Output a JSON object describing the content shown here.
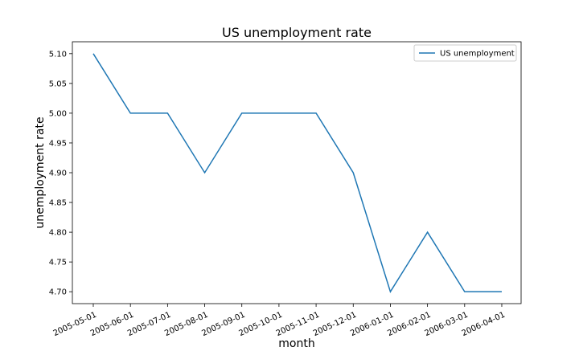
{
  "chart_data": {
    "type": "line",
    "title": "US unemployment rate",
    "xlabel": "month",
    "ylabel": "unemployment rate",
    "categories": [
      "2005-05-01",
      "2005-06-01",
      "2005-07-01",
      "2005-08-01",
      "2005-09-01",
      "2005-10-01",
      "2005-11-01",
      "2005-12-01",
      "2006-01-01",
      "2006-02-01",
      "2006-03-01",
      "2006-04-01"
    ],
    "series": [
      {
        "name": "US unemployment",
        "values": [
          5.1,
          5.0,
          5.0,
          4.9,
          5.0,
          5.0,
          5.0,
          4.9,
          4.7,
          4.8,
          4.7,
          4.7
        ],
        "color": "#1f77b4"
      }
    ],
    "yticks": [
      "4.70",
      "4.75",
      "4.80",
      "4.85",
      "4.90",
      "4.95",
      "5.00",
      "5.05",
      "5.10"
    ],
    "ylim": [
      4.68,
      5.12
    ],
    "grid": false,
    "legend_position": "upper right"
  }
}
